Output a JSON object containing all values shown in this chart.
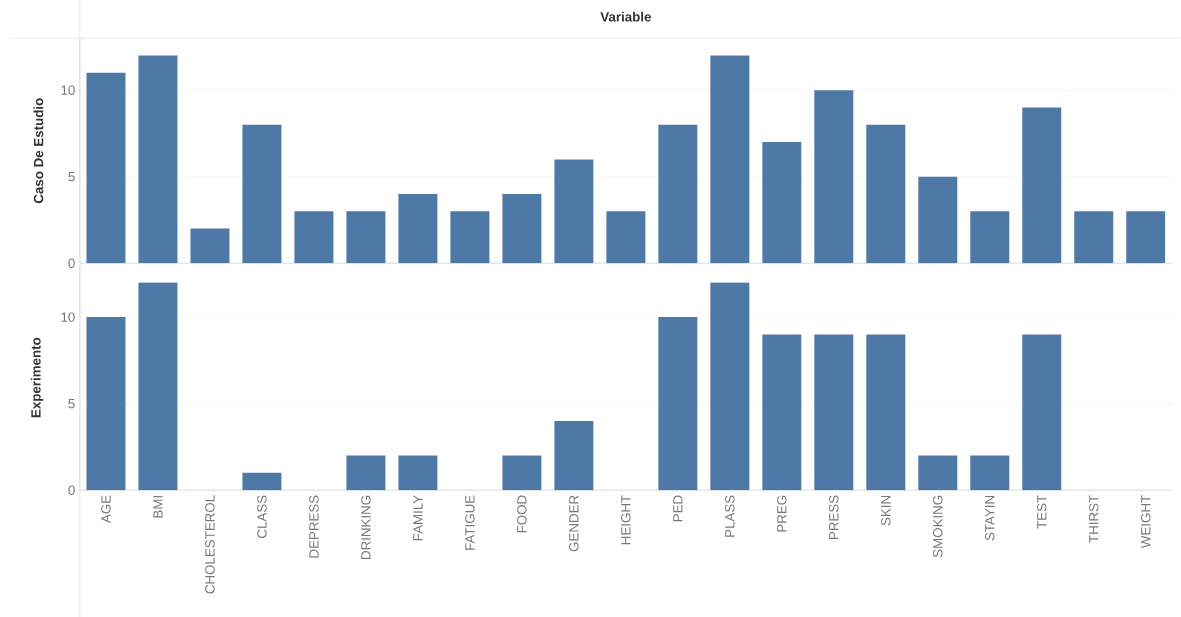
{
  "chart_data": [
    {
      "type": "bar",
      "title": "Variable",
      "ylabel": "Caso De Estudio",
      "categories": [
        null,
        null,
        null,
        null,
        null,
        null,
        null,
        null,
        null,
        null,
        null,
        null,
        null,
        null,
        null,
        null,
        null,
        null,
        null,
        null,
        null
      ],
      "values": [
        11,
        12,
        2,
        8,
        3,
        3,
        4,
        3,
        4,
        6,
        3,
        8,
        12,
        7,
        10,
        8,
        5,
        3,
        9,
        3,
        3
      ],
      "color": "#4e79a7",
      "ylim": [
        0,
        13
      ],
      "yticks": [
        0,
        5,
        10
      ],
      "grid": "y",
      "tick_labels": "y"
    },
    {
      "type": "bar",
      "ylabel": "Experimento",
      "categories": [
        "AGE",
        "BMI",
        "CHOLESTEROL",
        "CLASS",
        "DEPRESS",
        "DRINKING",
        "FAMILY",
        "FATIGUE",
        "FOOD",
        "GENDER",
        "HEIGHT",
        "PED",
        "PLASS",
        "PREG",
        "PRESS",
        "SKIN",
        "SMOKING",
        "STAYIN",
        "TEST",
        "THIRST",
        "WEIGHT"
      ],
      "values": [
        10,
        12,
        null,
        1,
        null,
        2,
        2,
        null,
        2,
        4,
        null,
        10,
        12,
        9,
        9,
        9,
        2,
        2,
        9,
        null,
        null
      ],
      "color": "#4e79a7",
      "ylim": [
        0,
        13
      ],
      "yticks": [
        0,
        5,
        10
      ],
      "grid": "y"
    }
  ]
}
